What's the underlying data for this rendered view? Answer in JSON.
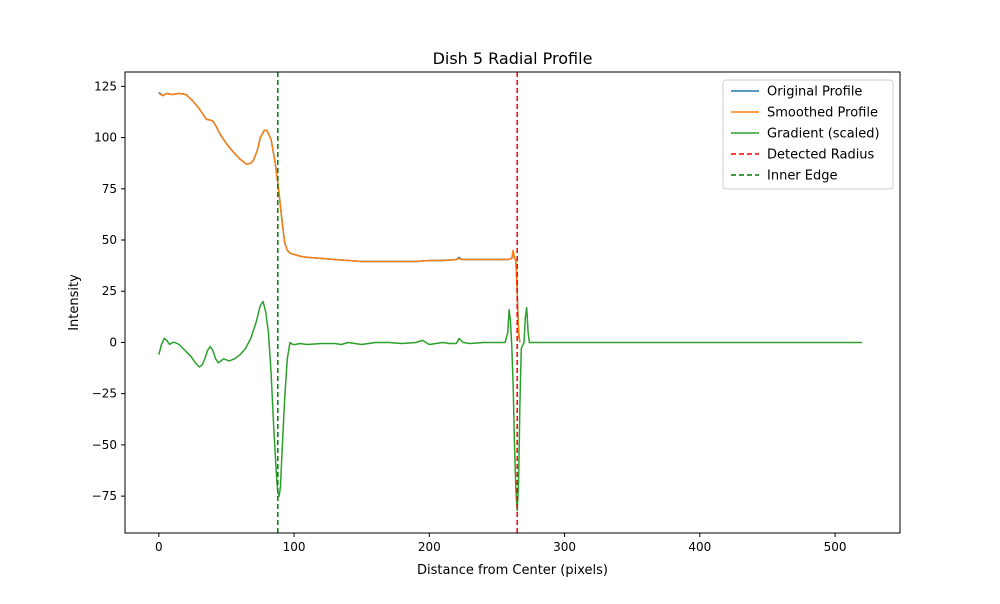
{
  "chart_data": {
    "type": "line",
    "title": "Dish 5 Radial Profile",
    "xlabel": "Distance from Center (pixels)",
    "ylabel": "Intensity",
    "xlim": [
      -25,
      548
    ],
    "ylim": [
      -93,
      132
    ],
    "xticks": [
      0,
      100,
      200,
      300,
      400,
      500
    ],
    "yticks": [
      -75,
      -50,
      -25,
      0,
      25,
      50,
      75,
      100,
      125
    ],
    "grid": false,
    "legend_position": "top-right",
    "series": [
      {
        "name": "Original Profile",
        "color": "#1f77b4",
        "style": "solid",
        "x": [
          0,
          3,
          6,
          10,
          15,
          20,
          25,
          30,
          35,
          38,
          40,
          42,
          45,
          50,
          55,
          60,
          65,
          68,
          70,
          73,
          75,
          78,
          80,
          83,
          86,
          88,
          89,
          91,
          93,
          95,
          97,
          100,
          105,
          110,
          120,
          130,
          140,
          150,
          160,
          170,
          180,
          190,
          200,
          210,
          220,
          222,
          224,
          230,
          240,
          250,
          258,
          261,
          262,
          263,
          264,
          265,
          266,
          267
        ],
        "y": [
          122,
          120.5,
          121.5,
          121,
          121.5,
          121,
          118,
          114,
          109,
          108.5,
          108,
          106,
          102,
          97,
          93,
          89.5,
          87,
          87.5,
          89,
          94,
          100,
          103.5,
          103.5,
          99,
          88,
          78,
          72,
          60,
          49,
          45,
          43.5,
          43,
          42,
          41.5,
          41,
          40.5,
          40,
          39.5,
          39.5,
          39.5,
          39.5,
          39.5,
          40,
          40,
          40.5,
          41.5,
          40.5,
          40.5,
          40.5,
          40.5,
          40.5,
          41,
          44,
          41,
          40,
          25,
          5,
          0
        ]
      },
      {
        "name": "Smoothed Profile",
        "color": "#ff7f0e",
        "style": "solid",
        "x": [
          0,
          3,
          6,
          10,
          15,
          20,
          25,
          30,
          35,
          38,
          40,
          42,
          45,
          50,
          55,
          60,
          65,
          68,
          70,
          73,
          75,
          78,
          80,
          83,
          86,
          88,
          89,
          91,
          93,
          95,
          97,
          100,
          105,
          110,
          120,
          130,
          140,
          150,
          160,
          170,
          180,
          190,
          200,
          210,
          220,
          222,
          224,
          230,
          240,
          250,
          258,
          261,
          262,
          263,
          264,
          265,
          266,
          267
        ],
        "y": [
          121.5,
          120.5,
          121.5,
          121,
          121.5,
          121,
          118,
          114,
          109,
          108.5,
          108,
          106,
          102,
          97,
          93,
          89.5,
          87,
          87.5,
          89,
          94,
          100,
          103.5,
          103.5,
          99,
          88,
          78,
          72,
          60,
          49,
          45,
          43.5,
          43,
          42,
          41.5,
          41,
          40.5,
          40,
          39.5,
          39.5,
          39.5,
          39.5,
          39.5,
          40,
          40,
          40.5,
          41,
          40.5,
          40.5,
          40.5,
          40.5,
          40.5,
          41,
          45,
          41,
          40,
          24,
          3,
          0
        ]
      },
      {
        "name": "Gradient (scaled)",
        "color": "#2ca02c",
        "style": "solid",
        "x": [
          0,
          2,
          4,
          6,
          8,
          10,
          12,
          15,
          18,
          21,
          24,
          27,
          30,
          32,
          34,
          36,
          38,
          40,
          42,
          44,
          46,
          48,
          52,
          56,
          60,
          64,
          68,
          72,
          75,
          77,
          79,
          81,
          83,
          85,
          87,
          88,
          89,
          90,
          91,
          93,
          95,
          97,
          99,
          101,
          104,
          110,
          120,
          130,
          135,
          140,
          145,
          150,
          160,
          170,
          180,
          190,
          195,
          200,
          205,
          210,
          215,
          220,
          222,
          225,
          230,
          240,
          250,
          256,
          258,
          259,
          260,
          261,
          262,
          263,
          264,
          265,
          266,
          267,
          268,
          270,
          271,
          272,
          273,
          274,
          275,
          280,
          300,
          350,
          400,
          450,
          500,
          520
        ],
        "y": [
          -6,
          -1,
          2,
          1,
          -1,
          0,
          0,
          -1,
          -3,
          -5,
          -7,
          -10,
          -12,
          -11,
          -8,
          -4,
          -2,
          -4,
          -8,
          -10,
          -9,
          -8,
          -9,
          -8,
          -6,
          -3,
          2,
          10,
          18,
          20,
          15,
          5,
          -15,
          -42,
          -65,
          -73,
          -75,
          -70,
          -55,
          -28,
          -8,
          0,
          -1,
          -1,
          -0.5,
          -1,
          -0.5,
          -0.5,
          -1,
          0,
          -0.5,
          -1,
          0,
          0,
          -0.5,
          0,
          1,
          -1,
          -0.5,
          0,
          -0.5,
          -0.5,
          2,
          0,
          -0.5,
          0,
          0,
          0,
          5,
          16,
          10,
          -2,
          -22,
          -50,
          -72,
          -82,
          -68,
          -30,
          -3,
          0,
          12,
          17,
          5,
          0,
          0,
          0,
          0,
          0,
          0,
          0,
          0,
          0
        ]
      },
      {
        "name": "Detected Radius",
        "color": "#ff0000",
        "style": "dashed",
        "x": [
          265
        ]
      },
      {
        "name": "Inner Edge",
        "color": "#008000",
        "style": "dashed",
        "x": [
          88
        ]
      }
    ]
  }
}
